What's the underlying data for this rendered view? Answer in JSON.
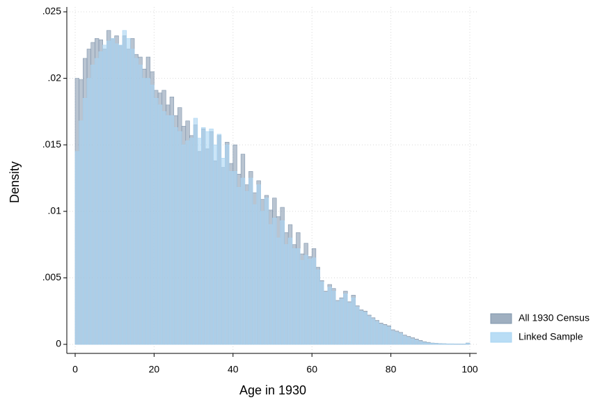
{
  "chart_data": {
    "type": "histogram",
    "xlabel": "Age in 1930",
    "ylabel": "Density",
    "bins": [
      0,
      1,
      2,
      3,
      4,
      5,
      6,
      7,
      8,
      9,
      10,
      11,
      12,
      13,
      14,
      15,
      16,
      17,
      18,
      19,
      20,
      21,
      22,
      23,
      24,
      25,
      26,
      27,
      28,
      29,
      30,
      31,
      32,
      33,
      34,
      35,
      36,
      37,
      38,
      39,
      40,
      41,
      42,
      43,
      44,
      45,
      46,
      47,
      48,
      49,
      50,
      51,
      52,
      53,
      54,
      55,
      56,
      57,
      58,
      59,
      60,
      61,
      62,
      63,
      64,
      65,
      66,
      67,
      68,
      69,
      70,
      71,
      72,
      73,
      74,
      75,
      76,
      77,
      78,
      79,
      80,
      81,
      82,
      83,
      84,
      85,
      86,
      87,
      88,
      89,
      90,
      91,
      92,
      93,
      94,
      95,
      96,
      97,
      98,
      99,
      100
    ],
    "series": [
      {
        "name": "All 1930 Census",
        "color": "#7f94ab",
        "opacity": 0.55,
        "values": [
          0.02,
          0.0199,
          0.0215,
          0.0222,
          0.0227,
          0.023,
          0.0229,
          0.0222,
          0.0236,
          0.023,
          0.0232,
          0.0225,
          0.0232,
          0.0222,
          0.023,
          0.0218,
          0.0216,
          0.0207,
          0.0216,
          0.0205,
          0.0191,
          0.0189,
          0.0191,
          0.018,
          0.0186,
          0.0172,
          0.0178,
          0.0164,
          0.0168,
          0.0157,
          0.0165,
          0.0145,
          0.0162,
          0.0147,
          0.016,
          0.0138,
          0.0157,
          0.0133,
          0.0152,
          0.0136,
          0.015,
          0.0128,
          0.0143,
          0.012,
          0.013,
          0.0114,
          0.0123,
          0.0109,
          0.0112,
          0.0101,
          0.011,
          0.0096,
          0.0103,
          0.0084,
          0.009,
          0.0075,
          0.0084,
          0.0068,
          0.0076,
          0.0066,
          0.0072,
          0.0058,
          0.0048,
          0.004,
          0.0045,
          0.0042,
          0.0033,
          0.0035,
          0.004,
          0.0032,
          0.0037,
          0.0029,
          0.0026,
          0.0025,
          0.0022,
          0.002,
          0.0018,
          0.0016,
          0.0015,
          0.0014,
          0.0011,
          0.001,
          0.0009,
          0.0007,
          0.0006,
          0.0005,
          0.0004,
          0.0003,
          0.0002,
          0.00015,
          0.0001,
          8e-05,
          6e-05,
          5e-05,
          4e-05,
          4e-05,
          3e-05,
          3e-05,
          3e-05,
          0.0001
        ]
      },
      {
        "name": "Linked Sample",
        "color": "#a8d4f2",
        "opacity": 0.6,
        "values": [
          0.0145,
          0.0168,
          0.0185,
          0.02,
          0.021,
          0.0215,
          0.022,
          0.0225,
          0.0228,
          0.023,
          0.0226,
          0.0225,
          0.0236,
          0.023,
          0.0222,
          0.0215,
          0.021,
          0.02,
          0.02,
          0.0195,
          0.0185,
          0.018,
          0.0175,
          0.0172,
          0.0172,
          0.0163,
          0.016,
          0.015,
          0.0153,
          0.0155,
          0.017,
          0.0155,
          0.0163,
          0.016,
          0.0162,
          0.015,
          0.0158,
          0.014,
          0.015,
          0.013,
          0.013,
          0.0118,
          0.0125,
          0.0115,
          0.0125,
          0.0105,
          0.012,
          0.01,
          0.011,
          0.009,
          0.0095,
          0.008,
          0.0093,
          0.0075,
          0.008,
          0.0072,
          0.0072,
          0.0063,
          0.0067,
          0.0064,
          0.0065,
          0.0056,
          0.0047,
          0.0039,
          0.0043,
          0.004,
          0.0032,
          0.0034,
          0.0038,
          0.0031,
          0.0035,
          0.0028,
          0.0025,
          0.0024,
          0.0021,
          0.0019,
          0.0017,
          0.0015,
          0.0014,
          0.0013,
          0.001,
          0.0009,
          0.0008,
          0.0006,
          0.0005,
          0.0004,
          0.0003,
          0.0002,
          0.00015,
          0.0001,
          8e-05,
          6e-05,
          5e-05,
          4e-05,
          3e-05,
          3e-05,
          2e-05,
          2e-05,
          2e-05,
          8e-05
        ]
      }
    ],
    "xlim": [
      0,
      100
    ],
    "xticks": [
      0,
      20,
      40,
      60,
      80,
      100
    ],
    "ylim": [
      0,
      0.025
    ],
    "yticks": [
      0,
      {
        "value": 0.005,
        "label": ".005"
      },
      {
        "value": 0.01,
        "label": ".01"
      },
      {
        "value": 0.015,
        "label": ".015"
      },
      {
        "value": 0.02,
        "label": ".02"
      },
      {
        "value": 0.025,
        "label": ".025"
      }
    ],
    "grid": true,
    "legend": "right"
  }
}
